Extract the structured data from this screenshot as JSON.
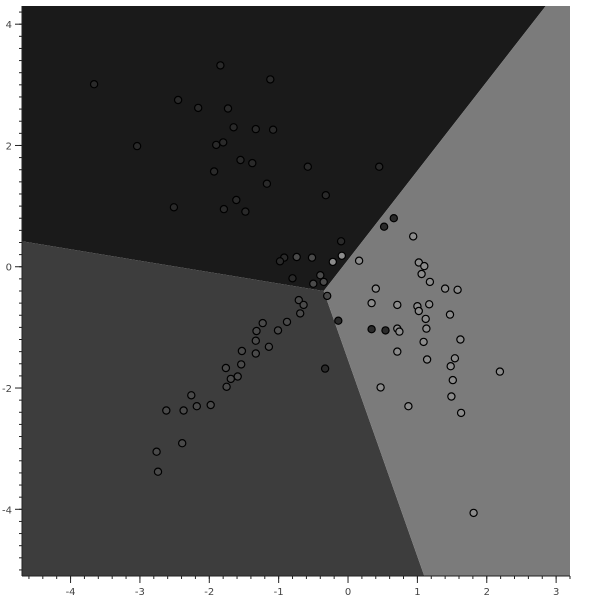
{
  "chart_data": {
    "type": "scatter",
    "title": "",
    "xlabel": "",
    "ylabel": "",
    "xlim": [
      -4.7,
      3.2
    ],
    "ylim": [
      -5.1,
      4.3
    ],
    "x_ticks": [
      -4,
      -3,
      -2,
      -1,
      0,
      1,
      2,
      3
    ],
    "y_ticks": [
      -4,
      -2,
      0,
      2,
      4
    ],
    "grid": false,
    "legend": "none",
    "decision_regions": [
      {
        "class": "top",
        "color": "#1a1a1a",
        "polygon": [
          [
            -0.35,
            -0.4
          ],
          [
            -4.7,
            0.42
          ],
          [
            -4.7,
            4.3
          ],
          [
            2.85,
            4.3
          ]
        ]
      },
      {
        "class": "left",
        "color": "#3d3d3d",
        "polygon": [
          [
            -0.35,
            -0.4
          ],
          [
            -4.7,
            0.42
          ],
          [
            -4.7,
            -5.1
          ],
          [
            1.1,
            -5.1
          ]
        ]
      },
      {
        "class": "right",
        "color": "#7b7b7b",
        "polygon": [
          [
            -0.35,
            -0.4
          ],
          [
            1.1,
            -5.1
          ],
          [
            3.2,
            -5.1
          ],
          [
            3.2,
            4.3
          ],
          [
            2.85,
            4.3
          ]
        ]
      }
    ],
    "series": [
      {
        "color": "#2a2a2a",
        "points": [
          [
            -3.66,
            3.01
          ],
          [
            -1.84,
            3.32
          ],
          [
            -1.12,
            3.09
          ],
          [
            -2.45,
            2.75
          ],
          [
            -2.16,
            2.62
          ],
          [
            -1.73,
            2.61
          ],
          [
            -1.65,
            2.3
          ],
          [
            -1.33,
            2.27
          ],
          [
            -1.08,
            2.26
          ],
          [
            -3.04,
            1.99
          ],
          [
            -1.9,
            2.01
          ],
          [
            -1.8,
            2.05
          ],
          [
            -1.55,
            1.76
          ],
          [
            -1.38,
            1.71
          ],
          [
            -0.58,
            1.65
          ],
          [
            -1.93,
            1.57
          ],
          [
            -1.17,
            1.37
          ],
          [
            -0.32,
            1.18
          ],
          [
            0.45,
            1.65
          ],
          [
            -2.51,
            0.98
          ],
          [
            -1.79,
            0.95
          ],
          [
            -1.48,
            0.91
          ],
          [
            -1.61,
            1.1
          ],
          [
            0.66,
            0.8
          ],
          [
            0.52,
            0.66
          ],
          [
            -0.8,
            -0.19
          ],
          [
            -0.92,
            0.15
          ],
          [
            -0.98,
            0.09
          ],
          [
            -0.1,
            0.42
          ],
          [
            -0.14,
            -0.89
          ],
          [
            0.34,
            -1.03
          ],
          [
            0.54,
            -1.05
          ],
          [
            -0.33,
            -1.68
          ]
        ]
      },
      {
        "color": "#4a4a4a",
        "points": [
          [
            -0.74,
            0.16
          ],
          [
            -0.52,
            0.15
          ],
          [
            -0.4,
            -0.14
          ],
          [
            -0.35,
            -0.25
          ],
          [
            -0.5,
            -0.28
          ],
          [
            -0.3,
            -0.48
          ],
          [
            -0.71,
            -0.55
          ],
          [
            -0.64,
            -0.63
          ],
          [
            -0.69,
            -0.77
          ],
          [
            -0.88,
            -0.91
          ],
          [
            -1.23,
            -0.93
          ],
          [
            -1.01,
            -1.05
          ],
          [
            -1.32,
            -1.06
          ],
          [
            -1.33,
            -1.22
          ],
          [
            -1.14,
            -1.32
          ],
          [
            -1.53,
            -1.39
          ],
          [
            -1.33,
            -1.43
          ],
          [
            -1.54,
            -1.61
          ],
          [
            -1.76,
            -1.67
          ],
          [
            -1.59,
            -1.81
          ],
          [
            -1.69,
            -1.85
          ],
          [
            -1.75,
            -1.98
          ],
          [
            -2.26,
            -2.12
          ],
          [
            -2.18,
            -2.3
          ],
          [
            -1.98,
            -2.28
          ],
          [
            -2.37,
            -2.37
          ],
          [
            -2.62,
            -2.37
          ],
          [
            -2.39,
            -2.91
          ],
          [
            -2.76,
            -3.05
          ],
          [
            -2.74,
            -3.38
          ]
        ]
      },
      {
        "color": "#8c8c8c",
        "points": [
          [
            -0.22,
            0.08
          ],
          [
            -0.09,
            0.18
          ],
          [
            0.16,
            0.1
          ],
          [
            0.94,
            0.5
          ],
          [
            1.02,
            0.07
          ],
          [
            1.06,
            -0.12
          ],
          [
            1.1,
            0.01
          ],
          [
            1.18,
            -0.25
          ],
          [
            1.4,
            -0.36
          ],
          [
            1.58,
            -0.38
          ],
          [
            0.4,
            -0.36
          ],
          [
            0.34,
            -0.6
          ],
          [
            0.71,
            -0.63
          ],
          [
            1.17,
            -0.62
          ],
          [
            1.0,
            -0.65
          ],
          [
            1.02,
            -0.73
          ],
          [
            1.12,
            -0.86
          ],
          [
            1.47,
            -0.79
          ],
          [
            1.13,
            -1.02
          ],
          [
            0.71,
            -1.02
          ],
          [
            0.74,
            -1.07
          ],
          [
            1.62,
            -1.2
          ],
          [
            1.09,
            -1.24
          ],
          [
            0.71,
            -1.4
          ],
          [
            1.14,
            -1.53
          ],
          [
            1.54,
            -1.51
          ],
          [
            1.48,
            -1.64
          ],
          [
            2.19,
            -1.73
          ],
          [
            1.51,
            -1.87
          ],
          [
            0.47,
            -1.99
          ],
          [
            1.49,
            -2.14
          ],
          [
            0.87,
            -2.3
          ],
          [
            1.63,
            -2.41
          ],
          [
            1.81,
            -4.06
          ]
        ]
      }
    ]
  }
}
